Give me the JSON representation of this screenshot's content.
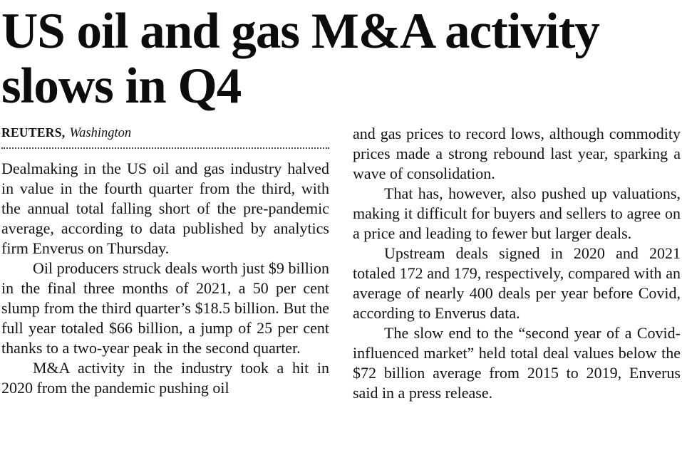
{
  "article": {
    "headline": "US oil and gas M&A activity slows in Q4",
    "headline_lines": [
      "US oil and gas M&A activity",
      "slows in Q4"
    ],
    "byline": {
      "source": "REUTERS,",
      "location": "Washington"
    },
    "columns": [
      {
        "paragraphs": [
          "Dealmaking in the US oil and gas industry halved in value in the fourth quarter from the third, with the annual total falling short of the pre-pandemic average, according to data published by analytics firm Enverus on Thursday.",
          "Oil producers struck deals worth just $9 billion in the final three months of 2021, a 50 per cent slump from the third quarter’s $18.5 billion. But the full year totaled $66 billion, a jump of 25 per cent thanks to a two-year peak in the second quarter.",
          "M&A activity in the industry took a hit in 2020 from the pandemic pushing oil"
        ]
      },
      {
        "paragraphs": [
          "and gas prices to record lows, although commodity prices made a strong rebound last year, sparking a wave of consolidation.",
          "That has, however, also pushed up valuations, making it difficult for buyers and sellers to agree on a price and leading to fewer but larger deals.",
          "Upstream deals signed in 2020 and 2021 totaled 172 and 179, respectively, compared with an average of nearly 400 deals per year before Covid, according to Enverus data.",
          "The slow end to the “second year of a Covid-influenced market” held total deal values below the $72 billion average from 2015 to 2019, Enverus said in a press release."
        ]
      }
    ]
  }
}
